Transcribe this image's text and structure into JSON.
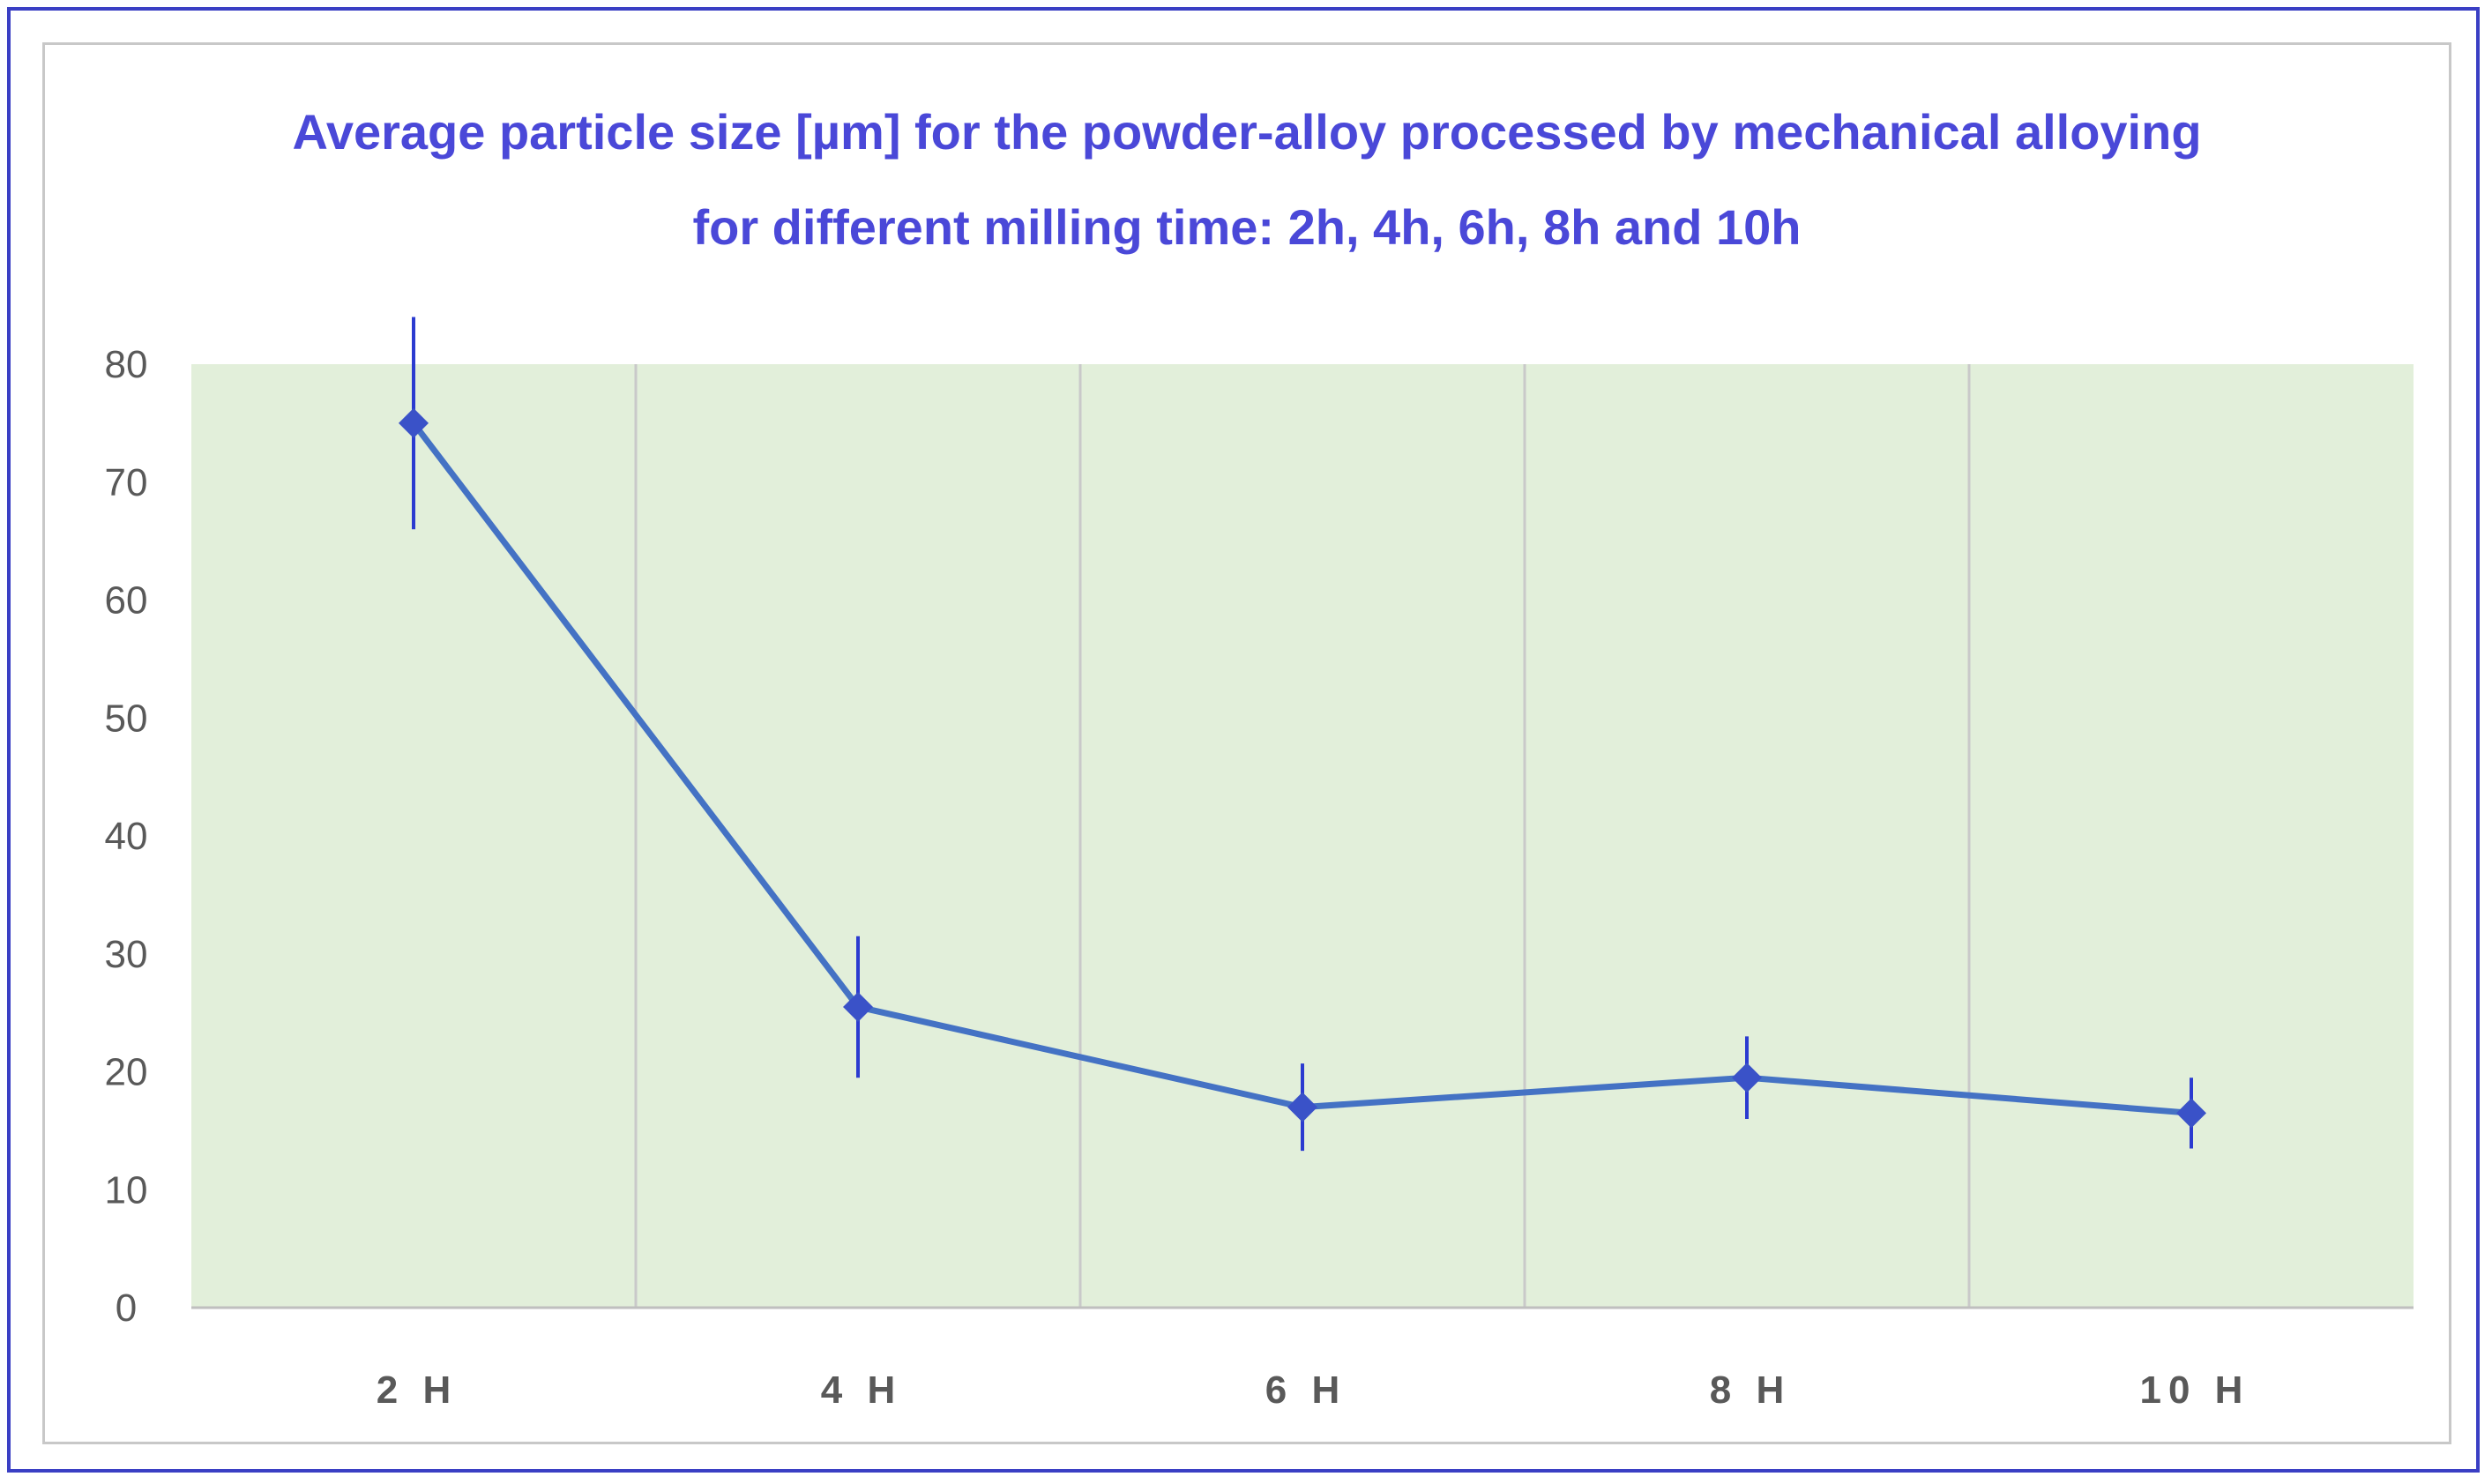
{
  "chart_data": {
    "type": "line",
    "title_lines": [
      "Average particle size [µm] for the powder-alloy processed by mechanical alloying",
      "for different milling time: 2h, 4h, 6h, 8h and 10h"
    ],
    "xlabel": "",
    "ylabel": "",
    "categories": [
      "2 H",
      "4 H",
      "6 H",
      "8 H",
      "10 H"
    ],
    "series": [
      {
        "values": [
          75,
          25.5,
          17,
          19.5,
          16.5
        ],
        "error": [
          9,
          6,
          3.7,
          3.5,
          3
        ]
      }
    ],
    "ylim": [
      0,
      80
    ],
    "yticks": [
      0,
      10,
      20,
      30,
      40,
      50,
      60,
      70,
      80
    ],
    "grid": "vertical",
    "legend": "none",
    "colors": {
      "line": "#4472c4",
      "marker": "#3a52c8",
      "error_bar": "#2b3bd0",
      "plot_background": "#e2efda",
      "grid": "#c9c9c9",
      "title": "#4a48d8",
      "frame": "#3a3fc4"
    }
  }
}
